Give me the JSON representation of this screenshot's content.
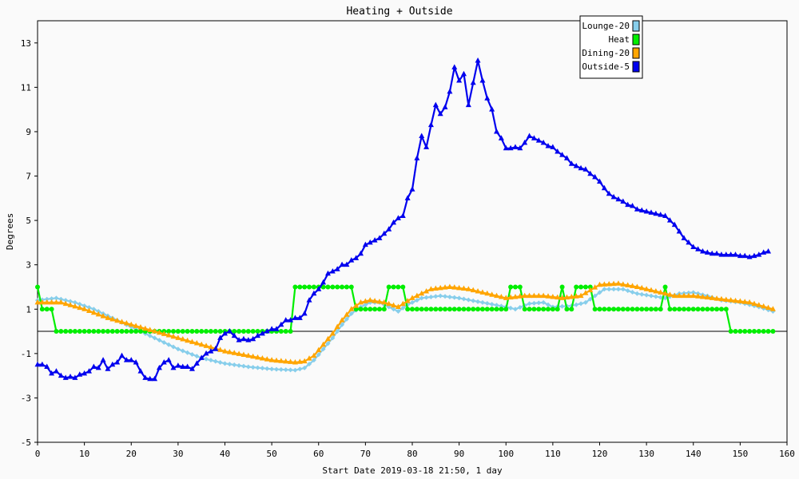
{
  "chart_data": {
    "type": "line",
    "title": "Heating + Outside",
    "xlabel": "Start Date 2019-03-18 21:50, 1 day",
    "ylabel": "Degrees",
    "xlim": [
      0,
      160
    ],
    "ylim": [
      -5,
      14
    ],
    "x_ticks": [
      0,
      10,
      20,
      30,
      40,
      50,
      60,
      70,
      80,
      90,
      100,
      110,
      120,
      130,
      140,
      150,
      160
    ],
    "y_ticks": [
      -5,
      -3,
      -1,
      1,
      3,
      5,
      7,
      9,
      11,
      13
    ],
    "grid": true,
    "legend_position": "top-right",
    "series": [
      {
        "name": "Lounge-20",
        "color": "#87ceeb",
        "marker": "diamond",
        "points": [
          [
            0,
            1.4
          ],
          [
            4,
            1.5
          ],
          [
            8,
            1.3
          ],
          [
            12,
            1.0
          ],
          [
            16,
            0.6
          ],
          [
            20,
            0.2
          ],
          [
            25,
            -0.3
          ],
          [
            30,
            -0.8
          ],
          [
            35,
            -1.2
          ],
          [
            40,
            -1.45
          ],
          [
            45,
            -1.6
          ],
          [
            50,
            -1.7
          ],
          [
            55,
            -1.75
          ],
          [
            57,
            -1.65
          ],
          [
            59,
            -1.3
          ],
          [
            61,
            -0.8
          ],
          [
            63,
            -0.3
          ],
          [
            65,
            0.3
          ],
          [
            67,
            0.8
          ],
          [
            69,
            1.1
          ],
          [
            71,
            1.3
          ],
          [
            73,
            1.3
          ],
          [
            75,
            1.1
          ],
          [
            77,
            0.9
          ],
          [
            79,
            1.2
          ],
          [
            82,
            1.5
          ],
          [
            86,
            1.6
          ],
          [
            90,
            1.5
          ],
          [
            95,
            1.3
          ],
          [
            100,
            1.1
          ],
          [
            102,
            1.0
          ],
          [
            105,
            1.25
          ],
          [
            108,
            1.3
          ],
          [
            110,
            1.1
          ],
          [
            114,
            1.15
          ],
          [
            117,
            1.3
          ],
          [
            119,
            1.6
          ],
          [
            121,
            1.9
          ],
          [
            125,
            1.9
          ],
          [
            128,
            1.7
          ],
          [
            131,
            1.6
          ],
          [
            134,
            1.5
          ],
          [
            137,
            1.7
          ],
          [
            140,
            1.75
          ],
          [
            143,
            1.6
          ],
          [
            146,
            1.4
          ],
          [
            150,
            1.3
          ],
          [
            154,
            1.1
          ],
          [
            157,
            0.9
          ]
        ]
      },
      {
        "name": "Heat",
        "color": "#00ee00",
        "marker": "circle",
        "points": [
          [
            0,
            2
          ],
          [
            1,
            1
          ],
          [
            3,
            1
          ],
          [
            4,
            0
          ],
          [
            54,
            0
          ],
          [
            55,
            2
          ],
          [
            67,
            2
          ],
          [
            68,
            1
          ],
          [
            74,
            1
          ],
          [
            75,
            2
          ],
          [
            78,
            2
          ],
          [
            79,
            1
          ],
          [
            100,
            1
          ],
          [
            101,
            2
          ],
          [
            103,
            2
          ],
          [
            104,
            1
          ],
          [
            111,
            1
          ],
          [
            112,
            2
          ],
          [
            113,
            1
          ],
          [
            114,
            1
          ],
          [
            115,
            2
          ],
          [
            118,
            2
          ],
          [
            119,
            1
          ],
          [
            133,
            1
          ],
          [
            134,
            2
          ],
          [
            135,
            1
          ],
          [
            147,
            1
          ],
          [
            148,
            0
          ],
          [
            157,
            0
          ]
        ]
      },
      {
        "name": "Dining-20",
        "color": "#ffa500",
        "marker": "triangle",
        "points": [
          [
            0,
            1.3
          ],
          [
            5,
            1.3
          ],
          [
            10,
            1.0
          ],
          [
            15,
            0.6
          ],
          [
            20,
            0.3
          ],
          [
            25,
            0.0
          ],
          [
            30,
            -0.3
          ],
          [
            35,
            -0.6
          ],
          [
            40,
            -0.9
          ],
          [
            45,
            -1.1
          ],
          [
            50,
            -1.3
          ],
          [
            55,
            -1.4
          ],
          [
            57,
            -1.35
          ],
          [
            59,
            -1.1
          ],
          [
            61,
            -0.6
          ],
          [
            63,
            -0.1
          ],
          [
            65,
            0.5
          ],
          [
            67,
            1.0
          ],
          [
            69,
            1.3
          ],
          [
            71,
            1.4
          ],
          [
            74,
            1.3
          ],
          [
            77,
            1.1
          ],
          [
            80,
            1.5
          ],
          [
            84,
            1.9
          ],
          [
            88,
            2.0
          ],
          [
            92,
            1.9
          ],
          [
            96,
            1.7
          ],
          [
            100,
            1.5
          ],
          [
            104,
            1.6
          ],
          [
            108,
            1.6
          ],
          [
            112,
            1.5
          ],
          [
            116,
            1.6
          ],
          [
            120,
            2.1
          ],
          [
            124,
            2.15
          ],
          [
            128,
            2.0
          ],
          [
            132,
            1.8
          ],
          [
            136,
            1.6
          ],
          [
            140,
            1.6
          ],
          [
            144,
            1.5
          ],
          [
            148,
            1.4
          ],
          [
            152,
            1.3
          ],
          [
            157,
            1.0
          ]
        ]
      },
      {
        "name": "Outside-5",
        "color": "#0000ee",
        "marker": "triangle",
        "points": [
          [
            0,
            -1.5
          ],
          [
            1,
            -1.5
          ],
          [
            2,
            -1.6
          ],
          [
            3,
            -1.9
          ],
          [
            4,
            -1.8
          ],
          [
            5,
            -2.0
          ],
          [
            6,
            -2.1
          ],
          [
            7,
            -2.05
          ],
          [
            8,
            -2.1
          ],
          [
            9,
            -1.95
          ],
          [
            10,
            -1.9
          ],
          [
            11,
            -1.8
          ],
          [
            12,
            -1.6
          ],
          [
            13,
            -1.65
          ],
          [
            14,
            -1.3
          ],
          [
            15,
            -1.7
          ],
          [
            16,
            -1.5
          ],
          [
            17,
            -1.4
          ],
          [
            18,
            -1.1
          ],
          [
            19,
            -1.3
          ],
          [
            20,
            -1.3
          ],
          [
            21,
            -1.4
          ],
          [
            22,
            -1.8
          ],
          [
            23,
            -2.1
          ],
          [
            24,
            -2.15
          ],
          [
            25,
            -2.15
          ],
          [
            26,
            -1.65
          ],
          [
            27,
            -1.4
          ],
          [
            28,
            -1.3
          ],
          [
            29,
            -1.65
          ],
          [
            30,
            -1.55
          ],
          [
            31,
            -1.6
          ],
          [
            32,
            -1.6
          ],
          [
            33,
            -1.7
          ],
          [
            34,
            -1.45
          ],
          [
            35,
            -1.2
          ],
          [
            36,
            -1.0
          ],
          [
            37,
            -0.9
          ],
          [
            38,
            -0.8
          ],
          [
            39,
            -0.3
          ],
          [
            40,
            -0.1
          ],
          [
            41,
            0.0
          ],
          [
            42,
            -0.2
          ],
          [
            43,
            -0.4
          ],
          [
            44,
            -0.35
          ],
          [
            45,
            -0.4
          ],
          [
            46,
            -0.35
          ],
          [
            47,
            -0.2
          ],
          [
            48,
            -0.1
          ],
          [
            49,
            0.0
          ],
          [
            50,
            0.1
          ],
          [
            51,
            0.1
          ],
          [
            52,
            0.3
          ],
          [
            53,
            0.5
          ],
          [
            54,
            0.5
          ],
          [
            55,
            0.6
          ],
          [
            56,
            0.6
          ],
          [
            57,
            0.8
          ],
          [
            58,
            1.4
          ],
          [
            59,
            1.7
          ],
          [
            60,
            1.9
          ],
          [
            61,
            2.2
          ],
          [
            62,
            2.6
          ],
          [
            63,
            2.7
          ],
          [
            64,
            2.8
          ],
          [
            65,
            3.0
          ],
          [
            66,
            3.0
          ],
          [
            67,
            3.2
          ],
          [
            68,
            3.3
          ],
          [
            69,
            3.5
          ],
          [
            70,
            3.9
          ],
          [
            71,
            4.0
          ],
          [
            72,
            4.1
          ],
          [
            73,
            4.2
          ],
          [
            74,
            4.4
          ],
          [
            75,
            4.6
          ],
          [
            76,
            4.9
          ],
          [
            77,
            5.1
          ],
          [
            78,
            5.2
          ],
          [
            79,
            6.0
          ],
          [
            80,
            6.4
          ],
          [
            81,
            7.8
          ],
          [
            82,
            8.8
          ],
          [
            83,
            8.3
          ],
          [
            84,
            9.3
          ],
          [
            85,
            10.2
          ],
          [
            86,
            9.8
          ],
          [
            87,
            10.1
          ],
          [
            88,
            10.8
          ],
          [
            89,
            11.9
          ],
          [
            90,
            11.3
          ],
          [
            91,
            11.6
          ],
          [
            92,
            10.2
          ],
          [
            93,
            11.2
          ],
          [
            94,
            12.2
          ],
          [
            95,
            11.3
          ],
          [
            96,
            10.5
          ],
          [
            97,
            10.0
          ],
          [
            98,
            9.0
          ],
          [
            99,
            8.7
          ],
          [
            100,
            8.25
          ],
          [
            101,
            8.25
          ],
          [
            102,
            8.3
          ],
          [
            103,
            8.25
          ],
          [
            104,
            8.5
          ],
          [
            105,
            8.8
          ],
          [
            106,
            8.7
          ],
          [
            107,
            8.6
          ],
          [
            108,
            8.5
          ],
          [
            109,
            8.35
          ],
          [
            110,
            8.3
          ],
          [
            111,
            8.1
          ],
          [
            112,
            7.95
          ],
          [
            113,
            7.8
          ],
          [
            114,
            7.55
          ],
          [
            115,
            7.45
          ],
          [
            116,
            7.35
          ],
          [
            117,
            7.3
          ],
          [
            118,
            7.1
          ],
          [
            119,
            6.95
          ],
          [
            120,
            6.75
          ],
          [
            121,
            6.45
          ],
          [
            122,
            6.2
          ],
          [
            123,
            6.05
          ],
          [
            124,
            5.95
          ],
          [
            125,
            5.85
          ],
          [
            126,
            5.7
          ],
          [
            127,
            5.65
          ],
          [
            128,
            5.5
          ],
          [
            129,
            5.45
          ],
          [
            130,
            5.4
          ],
          [
            131,
            5.35
          ],
          [
            132,
            5.3
          ],
          [
            133,
            5.25
          ],
          [
            134,
            5.2
          ],
          [
            135,
            5.0
          ],
          [
            136,
            4.8
          ],
          [
            137,
            4.5
          ],
          [
            138,
            4.2
          ],
          [
            139,
            4.0
          ],
          [
            140,
            3.8
          ],
          [
            141,
            3.7
          ],
          [
            142,
            3.6
          ],
          [
            143,
            3.55
          ],
          [
            144,
            3.5
          ],
          [
            145,
            3.5
          ],
          [
            146,
            3.45
          ],
          [
            147,
            3.45
          ],
          [
            148,
            3.45
          ],
          [
            149,
            3.45
          ],
          [
            150,
            3.4
          ],
          [
            151,
            3.4
          ],
          [
            152,
            3.35
          ],
          [
            153,
            3.4
          ],
          [
            154,
            3.45
          ],
          [
            155,
            3.55
          ],
          [
            156,
            3.6
          ]
        ]
      }
    ]
  }
}
